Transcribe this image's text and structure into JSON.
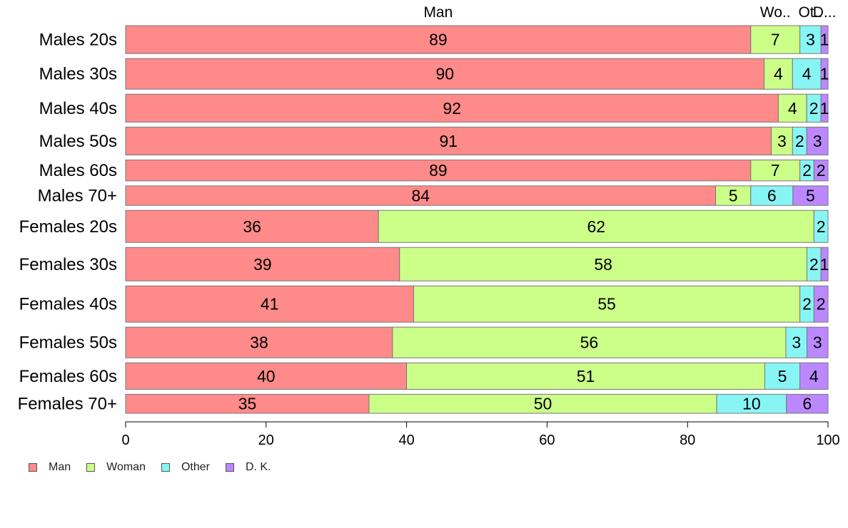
{
  "chart_data": {
    "type": "bar",
    "orientation": "horizontal",
    "stacked": true,
    "title": "",
    "xlabel": "",
    "ylabel": "",
    "xlim": [
      0,
      100
    ],
    "x_ticks": [
      0,
      20,
      40,
      60,
      80,
      100
    ],
    "grid": false,
    "legend_position": "bottom-left",
    "top_labels": [
      "Man",
      "Wo..",
      "Ot..",
      "D..."
    ],
    "categories": [
      "Males 20s",
      "Males 30s",
      "Males 40s",
      "Males 50s",
      "Males 60s",
      "Males 70+",
      "Females 20s",
      "Females 30s",
      "Females 40s",
      "Females 50s",
      "Females 60s",
      "Females 70+"
    ],
    "series": [
      {
        "name": "Man",
        "color": "#FF8A8A",
        "values": [
          89,
          90,
          92,
          91,
          89,
          84,
          36,
          39,
          41,
          38,
          40,
          35
        ]
      },
      {
        "name": "Woman",
        "color": "#CCFF88",
        "values": [
          7,
          4,
          4,
          3,
          7,
          5,
          62,
          58,
          55,
          56,
          51,
          50
        ]
      },
      {
        "name": "Other",
        "color": "#88F5F5",
        "values": [
          3,
          4,
          2,
          2,
          2,
          6,
          2,
          2,
          2,
          3,
          5,
          10
        ]
      },
      {
        "name": "D. K.",
        "color": "#BB88FF",
        "values": [
          1,
          1,
          1,
          3,
          2,
          5,
          0,
          1,
          2,
          3,
          4,
          6
        ]
      }
    ],
    "legend": [
      "Man",
      "Woman",
      "Other",
      "D. K."
    ]
  }
}
